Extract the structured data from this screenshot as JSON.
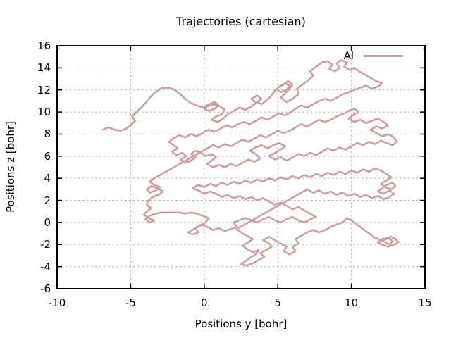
{
  "chart_data": {
    "type": "line",
    "title": "Trajectories (cartesian)",
    "xlabel": "Positions y [bohr]",
    "ylabel": "Positions z [bohr]",
    "xlim": [
      -10,
      15
    ],
    "ylim": [
      -6,
      16
    ],
    "x_ticks": [
      -10,
      -5,
      0,
      5,
      10,
      15
    ],
    "y_ticks": [
      -6,
      -4,
      -2,
      0,
      2,
      4,
      6,
      8,
      10,
      12,
      14,
      16
    ],
    "grid": "dashed",
    "grid_color": "#b0b0b0",
    "border_color": "#000000",
    "legend_position": "top-right-inside",
    "series": [
      {
        "name": "Al",
        "color": "#cf9e9e",
        "line_width": 2.6,
        "points_xy": [
          -6.9,
          8.4,
          -6.5,
          8.6,
          -6.1,
          8.4,
          -5.7,
          8.3,
          -5.3,
          8.5,
          -5.0,
          8.8,
          -4.7,
          9.2,
          -4.9,
          9.6,
          -4.6,
          10.0,
          -4.3,
          10.4,
          -4.0,
          10.8,
          -3.7,
          11.3,
          -3.4,
          11.7,
          -3.1,
          12.0,
          -2.8,
          12.2,
          -2.4,
          12.2,
          -2.0,
          12.0,
          -1.6,
          11.6,
          -1.3,
          11.2,
          -0.9,
          10.8,
          -0.5,
          10.6,
          -0.1,
          10.4,
          0.3,
          10.7,
          0.7,
          10.9,
          1.0,
          10.6,
          0.7,
          10.3,
          0.3,
          10.1,
          0.0,
          10.3,
          0.3,
          10.6,
          0.7,
          10.7,
          1.1,
          10.5,
          1.4,
          10.2,
          1.2,
          9.8,
          0.8,
          9.6,
          0.5,
          9.3,
          0.9,
          9.1,
          1.3,
          9.4,
          1.6,
          9.8,
          2.0,
          10.1,
          2.4,
          10.4,
          2.8,
          10.2,
          3.2,
          10.5,
          3.5,
          10.8,
          3.2,
          11.2,
          3.6,
          11.5,
          3.9,
          11.2,
          3.6,
          10.9,
          3.9,
          10.7,
          4.2,
          11.0,
          4.5,
          11.4,
          4.8,
          11.9,
          5.1,
          12.3,
          5.5,
          12.6,
          5.8,
          12.4,
          5.6,
          12.0,
          5.2,
          11.8,
          4.9,
          12.1,
          5.3,
          12.4,
          5.7,
          12.8,
          6.0,
          12.5,
          5.8,
          12.1,
          5.5,
          11.7,
          5.2,
          11.3,
          5.6,
          10.9,
          6.0,
          11.2,
          6.4,
          11.6,
          6.3,
          12.1,
          6.7,
          12.5,
          7.1,
          12.9,
          7.4,
          13.3,
          7.2,
          13.7,
          7.6,
          14.1,
          8.0,
          14.5,
          8.4,
          14.6,
          8.7,
          14.3,
          8.5,
          13.9,
          8.9,
          13.7,
          9.2,
          14.0,
          9.0,
          14.4,
          9.3,
          14.7,
          9.7,
          14.5,
          9.5,
          14.1,
          9.9,
          13.8,
          10.2,
          14.0,
          10.5,
          13.7,
          10.9,
          13.4,
          11.3,
          13.1,
          11.7,
          12.8,
          12.1,
          12.6,
          11.8,
          12.3,
          11.4,
          12.1,
          11.0,
          12.4,
          10.6,
          12.2,
          10.2,
          12.0,
          9.8,
          11.8,
          9.4,
          11.6,
          9.0,
          11.3,
          8.6,
          11.0,
          8.2,
          11.2,
          7.8,
          11.0,
          7.4,
          10.7,
          7.0,
          10.4,
          6.6,
          10.6,
          6.2,
          10.3,
          5.9,
          10.0,
          5.5,
          9.7,
          5.1,
          9.9,
          4.7,
          9.6,
          4.3,
          9.3,
          3.9,
          9.5,
          3.5,
          9.2,
          3.1,
          8.9,
          2.7,
          9.1,
          2.3,
          8.9,
          1.9,
          8.6,
          1.5,
          8.8,
          1.1,
          8.5,
          0.7,
          8.2,
          0.3,
          8.4,
          -0.1,
          8.1,
          -0.5,
          7.8,
          -0.9,
          8.0,
          -1.3,
          7.7,
          -1.7,
          7.9,
          -2.1,
          7.6,
          -2.4,
          7.3,
          -2.1,
          7.0,
          -1.8,
          6.7,
          -2.2,
          6.4,
          -1.9,
          6.1,
          -1.5,
          6.3,
          -1.2,
          6.0,
          -1.6,
          5.7,
          -1.3,
          5.4,
          -0.9,
          5.6,
          -0.6,
          5.9,
          -0.9,
          6.2,
          -0.6,
          6.5,
          -0.2,
          6.3,
          0.1,
          6.0,
          0.5,
          6.2,
          0.8,
          5.9,
          0.5,
          5.6,
          0.2,
          5.3,
          0.6,
          5.0,
          1.0,
          5.2,
          1.4,
          5.0,
          1.8,
          5.3,
          2.2,
          5.1,
          2.6,
          5.4,
          3.0,
          5.7,
          3.4,
          5.5,
          3.8,
          5.8,
          3.5,
          6.2,
          3.1,
          6.5,
          3.5,
          6.8,
          3.9,
          7.0,
          4.3,
          6.7,
          4.7,
          7.0,
          5.1,
          7.2,
          5.5,
          6.9,
          5.2,
          6.6,
          4.8,
          6.3,
          4.4,
          6.0,
          4.8,
          5.7,
          5.2,
          5.9,
          5.6,
          5.6,
          6.0,
          5.9,
          6.4,
          6.2,
          6.8,
          6.0,
          7.2,
          6.3,
          7.6,
          6.1,
          8.0,
          6.4,
          8.4,
          6.7,
          8.8,
          6.5,
          9.2,
          6.8,
          9.6,
          6.6,
          10.0,
          6.9,
          10.4,
          7.2,
          10.8,
          7.0,
          11.2,
          7.3,
          11.6,
          7.1,
          12.0,
          7.4,
          12.4,
          7.2,
          12.8,
          7.0,
          13.1,
          7.3,
          12.9,
          7.7,
          12.5,
          8.0,
          12.1,
          7.8,
          11.7,
          8.1,
          11.3,
          8.4,
          11.7,
          8.7,
          12.1,
          8.5,
          12.5,
          8.8,
          12.2,
          9.1,
          11.8,
          9.4,
          11.4,
          9.2,
          11.0,
          9.0,
          10.6,
          9.3,
          10.2,
          9.1,
          9.8,
          9.4,
          10.1,
          9.7,
          10.5,
          10.0,
          10.2,
          10.3,
          9.8,
          10.1,
          9.4,
          9.8,
          9.0,
          9.6,
          8.6,
          9.3,
          8.2,
          9.1,
          7.8,
          9.3,
          7.4,
          9.0,
          7.0,
          8.7,
          6.6,
          8.9,
          6.2,
          8.6,
          5.8,
          8.3,
          5.4,
          8.1,
          5.0,
          8.3,
          4.6,
          8.0,
          4.2,
          7.7,
          3.8,
          7.9,
          3.4,
          7.6,
          3.0,
          7.3,
          2.6,
          7.5,
          2.2,
          7.2,
          1.8,
          6.9,
          1.4,
          7.1,
          1.0,
          6.8,
          0.6,
          7.0,
          0.2,
          6.7,
          -0.2,
          6.4,
          -0.6,
          6.1,
          -1.0,
          5.8,
          -1.4,
          5.5,
          -1.8,
          5.2,
          -2.2,
          4.9,
          -2.6,
          4.6,
          -3.0,
          4.3,
          -3.4,
          4.0,
          -3.7,
          3.7,
          -3.4,
          3.4,
          -3.0,
          3.2,
          -3.3,
          2.9,
          -3.7,
          2.7,
          -3.9,
          3.0,
          -3.6,
          3.3,
          -3.2,
          3.1,
          -2.8,
          2.8,
          -3.1,
          2.5,
          -3.5,
          2.3,
          -3.8,
          2.0,
          -3.9,
          1.6,
          -3.6,
          1.3,
          -3.9,
          1.0,
          -4.1,
          0.7,
          -3.8,
          0.4,
          -3.4,
          0.2,
          -3.7,
          0.0,
          -4.0,
          0.3,
          -3.7,
          0.6,
          -3.3,
          0.8,
          -2.9,
          0.9,
          -2.5,
          0.9,
          -2.1,
          0.9,
          -1.7,
          0.9,
          -1.3,
          0.8,
          -0.9,
          0.9,
          -0.5,
          0.8,
          -0.1,
          0.6,
          0.3,
          0.4,
          0.1,
          0.0,
          -0.3,
          -0.3,
          -0.7,
          -0.6,
          -1.1,
          -0.9,
          -0.8,
          -1.1,
          -0.4,
          -0.9,
          -0.6,
          -0.5,
          -0.2,
          -0.2,
          0.2,
          -0.4,
          0.6,
          -0.7,
          1.0,
          -0.5,
          1.4,
          -0.8,
          1.8,
          -0.6,
          2.2,
          -0.4,
          2.0,
          0.0,
          2.4,
          0.2,
          2.8,
          0.4,
          3.2,
          0.2,
          3.6,
          0.0,
          4.0,
          0.3,
          4.4,
          0.5,
          4.8,
          0.2,
          5.2,
          0.0,
          5.6,
          0.3,
          6.0,
          0.5,
          6.4,
          0.2,
          6.8,
          0.0,
          7.2,
          0.3,
          7.6,
          0.5,
          7.2,
          0.8,
          6.8,
          1.1,
          6.4,
          1.4,
          6.0,
          1.2,
          5.6,
          1.5,
          5.2,
          1.8,
          4.8,
          1.6,
          4.4,
          1.9,
          4.0,
          2.2,
          3.6,
          2.0,
          3.2,
          2.3,
          2.8,
          2.1,
          2.4,
          2.4,
          2.0,
          2.2,
          1.6,
          2.5,
          1.2,
          2.3,
          0.8,
          2.6,
          0.4,
          2.8,
          0.0,
          2.6,
          -0.4,
          2.9,
          -0.8,
          3.1,
          -0.4,
          3.4,
          0.0,
          3.2,
          0.4,
          3.5,
          0.8,
          3.3,
          1.2,
          3.6,
          1.6,
          3.4,
          2.0,
          3.7,
          2.4,
          3.5,
          2.8,
          3.8,
          3.2,
          3.6,
          3.6,
          3.9,
          4.0,
          3.7,
          4.4,
          4.0,
          4.8,
          3.8,
          5.2,
          4.1,
          5.6,
          3.9,
          6.0,
          4.2,
          6.4,
          4.0,
          6.8,
          4.3,
          7.2,
          4.1,
          7.6,
          4.4,
          8.0,
          4.2,
          8.4,
          4.5,
          8.8,
          4.3,
          9.2,
          4.6,
          9.6,
          4.4,
          10.0,
          4.7,
          10.4,
          4.5,
          10.8,
          4.8,
          11.2,
          4.6,
          11.6,
          4.9,
          12.0,
          4.7,
          12.4,
          4.4,
          12.7,
          4.1,
          12.4,
          3.8,
          12.0,
          3.5,
          12.3,
          3.2,
          12.7,
          3.0,
          13.0,
          3.3,
          12.8,
          3.6,
          12.4,
          3.4,
          12.1,
          3.1,
          11.8,
          2.8,
          12.2,
          2.6,
          12.6,
          2.9,
          12.9,
          2.6,
          12.6,
          2.3,
          12.2,
          2.1,
          11.8,
          2.4,
          11.4,
          2.2,
          11.0,
          2.5,
          10.6,
          2.3,
          10.2,
          2.6,
          9.8,
          2.4,
          9.4,
          2.7,
          9.0,
          2.5,
          8.6,
          2.8,
          8.2,
          2.6,
          7.8,
          2.9,
          7.4,
          2.7,
          7.0,
          3.0,
          6.6,
          2.7,
          6.2,
          2.4,
          5.8,
          2.1,
          5.4,
          1.8,
          5.0,
          1.5,
          4.6,
          1.2,
          4.2,
          0.9,
          3.8,
          0.6,
          3.4,
          0.3,
          3.0,
          0.0,
          2.6,
          -0.3,
          2.2,
          -0.6,
          2.5,
          -0.9,
          2.9,
          -1.2,
          3.3,
          -1.5,
          3.0,
          -1.8,
          2.6,
          -2.1,
          2.9,
          -2.4,
          3.3,
          -2.7,
          3.7,
          -2.5,
          3.5,
          -2.9,
          3.1,
          -3.2,
          2.8,
          -3.5,
          2.5,
          -3.8,
          2.9,
          -3.9,
          3.3,
          -3.7,
          3.7,
          -3.4,
          4.1,
          -3.1,
          3.8,
          -2.8,
          4.2,
          -2.5,
          4.6,
          -2.2,
          4.4,
          -1.9,
          4.0,
          -1.6,
          4.4,
          -1.3,
          4.8,
          -1.6,
          5.2,
          -1.9,
          5.6,
          -2.2,
          5.4,
          -2.6,
          5.8,
          -2.9,
          6.2,
          -2.6,
          6.0,
          -2.2,
          6.4,
          -1.9,
          6.2,
          -1.5,
          6.6,
          -1.2,
          7.0,
          -0.9,
          7.4,
          -0.7,
          7.8,
          -0.9,
          8.2,
          -0.7,
          8.6,
          -0.4,
          9.0,
          -0.2,
          9.4,
          0.0,
          9.7,
          0.4,
          10.0,
          0.2,
          10.3,
          -0.1,
          10.6,
          -0.4,
          10.9,
          -0.7,
          11.2,
          -1.0,
          11.5,
          -1.3,
          11.8,
          -1.5,
          12.1,
          -1.7,
          12.4,
          -1.5,
          12.7,
          -1.3,
          13.0,
          -1.5,
          13.2,
          -1.8,
          12.9,
          -2.0,
          12.5,
          -2.2,
          12.1,
          -2.0,
          11.8,
          -1.8,
          12.1,
          -1.5,
          12.5,
          -1.4,
          12.8,
          -1.7,
          12.6,
          -2.0,
          12.3,
          -1.8
        ]
      }
    ]
  }
}
